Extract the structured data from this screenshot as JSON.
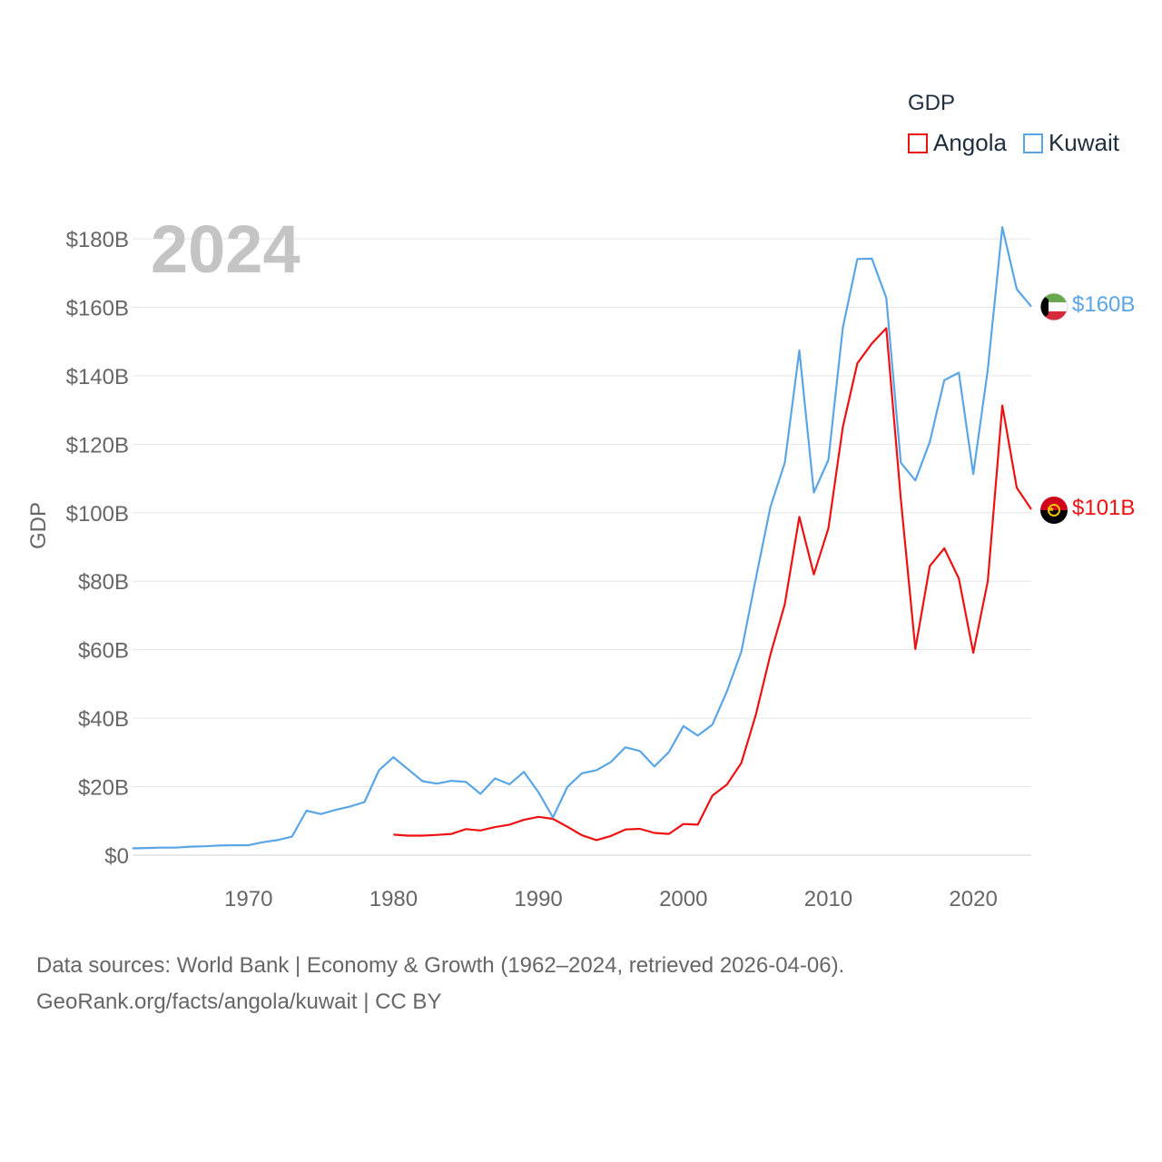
{
  "legend": {
    "title": "GDP",
    "items": [
      {
        "label": "Angola",
        "color": "#ee1111"
      },
      {
        "label": "Kuwait",
        "color": "#5aa5e6"
      }
    ]
  },
  "footer": {
    "line1": "Data sources: World Bank | Economy & Growth (1962–2024, retrieved 2026-04-06).",
    "line2": "GeoRank.org/facts/angola/kuwait | CC BY"
  },
  "chart_data": {
    "type": "line",
    "title": "GDP",
    "year_label": "2024",
    "xlabel": "",
    "ylabel": "GDP",
    "xlim": [
      1962,
      2024
    ],
    "ylim": [
      0,
      180
    ],
    "x_ticks": [
      1970,
      1980,
      1990,
      2000,
      2010,
      2020
    ],
    "y_ticks": [
      0,
      20,
      40,
      60,
      80,
      100,
      120,
      140,
      160,
      180
    ],
    "y_tick_labels": [
      "$0",
      "$20B",
      "$40B",
      "$60B",
      "$80B",
      "$100B",
      "$120B",
      "$140B",
      "$160B",
      "$180B"
    ],
    "grid": true,
    "series": [
      {
        "name": "Angola",
        "color": "#ee1111",
        "end_label": "$101B",
        "points": [
          [
            1980,
            6.0
          ],
          [
            1981,
            5.7
          ],
          [
            1982,
            5.7
          ],
          [
            1983,
            5.9
          ],
          [
            1984,
            6.2
          ],
          [
            1985,
            7.6
          ],
          [
            1986,
            7.2
          ],
          [
            1987,
            8.2
          ],
          [
            1988,
            8.9
          ],
          [
            1989,
            10.3
          ],
          [
            1990,
            11.2
          ],
          [
            1991,
            10.6
          ],
          [
            1992,
            8.3
          ],
          [
            1993,
            5.8
          ],
          [
            1994,
            4.4
          ],
          [
            1995,
            5.6
          ],
          [
            1996,
            7.5
          ],
          [
            1997,
            7.7
          ],
          [
            1998,
            6.5
          ],
          [
            1999,
            6.2
          ],
          [
            2000,
            9.1
          ],
          [
            2001,
            8.9
          ],
          [
            2002,
            17.4
          ],
          [
            2003,
            20.6
          ],
          [
            2004,
            26.9
          ],
          [
            2005,
            41.0
          ],
          [
            2006,
            58.5
          ],
          [
            2007,
            73.3
          ],
          [
            2008,
            98.8
          ],
          [
            2009,
            82.0
          ],
          [
            2010,
            95.4
          ],
          [
            2011,
            125.0
          ],
          [
            2012,
            143.6
          ],
          [
            2013,
            149.4
          ],
          [
            2014,
            153.9
          ],
          [
            2015,
            104.0
          ],
          [
            2016,
            60.2
          ],
          [
            2017,
            84.4
          ],
          [
            2018,
            89.6
          ],
          [
            2019,
            80.8
          ],
          [
            2020,
            59.1
          ],
          [
            2021,
            80.0
          ],
          [
            2022,
            131.3
          ],
          [
            2023,
            107.3
          ],
          [
            2024,
            101.0
          ]
        ]
      },
      {
        "name": "Kuwait",
        "color": "#5aa5e6",
        "end_label": "$160B",
        "points": [
          [
            1962,
            2.0
          ],
          [
            1963,
            2.1
          ],
          [
            1964,
            2.2
          ],
          [
            1965,
            2.2
          ],
          [
            1966,
            2.5
          ],
          [
            1967,
            2.6
          ],
          [
            1968,
            2.8
          ],
          [
            1969,
            2.9
          ],
          [
            1970,
            2.9
          ],
          [
            1971,
            3.8
          ],
          [
            1972,
            4.4
          ],
          [
            1973,
            5.4
          ],
          [
            1974,
            13.0
          ],
          [
            1975,
            12.0
          ],
          [
            1976,
            13.2
          ],
          [
            1977,
            14.2
          ],
          [
            1978,
            15.5
          ],
          [
            1979,
            24.8
          ],
          [
            1980,
            28.6
          ],
          [
            1981,
            25.1
          ],
          [
            1982,
            21.6
          ],
          [
            1983,
            20.9
          ],
          [
            1984,
            21.7
          ],
          [
            1985,
            21.4
          ],
          [
            1986,
            17.9
          ],
          [
            1987,
            22.4
          ],
          [
            1988,
            20.7
          ],
          [
            1989,
            24.3
          ],
          [
            1990,
            18.4
          ],
          [
            1991,
            11.0
          ],
          [
            1992,
            19.9
          ],
          [
            1993,
            23.9
          ],
          [
            1994,
            24.8
          ],
          [
            1995,
            27.2
          ],
          [
            1996,
            31.5
          ],
          [
            1997,
            30.4
          ],
          [
            1998,
            25.9
          ],
          [
            1999,
            30.1
          ],
          [
            2000,
            37.7
          ],
          [
            2001,
            34.9
          ],
          [
            2002,
            38.1
          ],
          [
            2003,
            47.8
          ],
          [
            2004,
            59.4
          ],
          [
            2005,
            80.8
          ],
          [
            2006,
            101.6
          ],
          [
            2007,
            114.6
          ],
          [
            2008,
            147.4
          ],
          [
            2009,
            105.9
          ],
          [
            2010,
            115.4
          ],
          [
            2011,
            154.0
          ],
          [
            2012,
            174.1
          ],
          [
            2013,
            174.2
          ],
          [
            2014,
            162.7
          ],
          [
            2015,
            114.6
          ],
          [
            2016,
            109.4
          ],
          [
            2017,
            120.7
          ],
          [
            2018,
            138.7
          ],
          [
            2019,
            140.9
          ],
          [
            2020,
            111.3
          ],
          [
            2021,
            141.8
          ],
          [
            2022,
            183.4
          ],
          [
            2023,
            165.3
          ],
          [
            2024,
            160.2
          ]
        ]
      }
    ]
  }
}
